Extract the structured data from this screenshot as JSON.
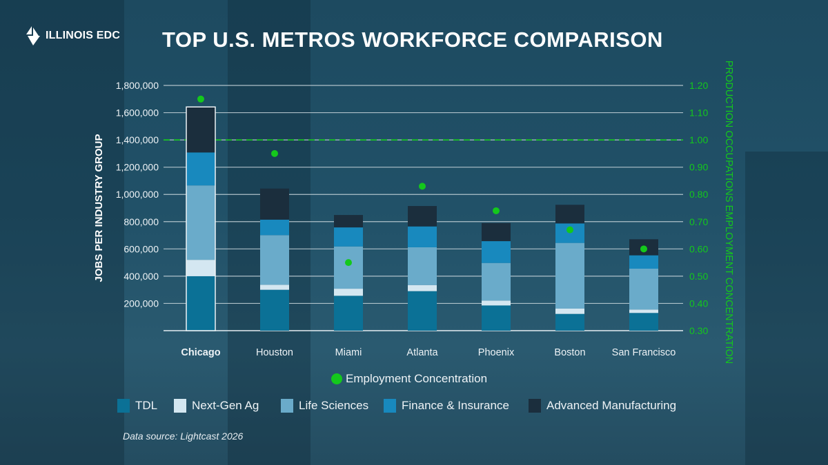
{
  "header": {
    "logo_text": "ILLINOIS EDC",
    "title": "TOP U.S. METROS WORKFORCE COMPARISON"
  },
  "footer": {
    "source": "Data source: Lightcast 2026"
  },
  "colors": {
    "TDL": "#0b7196",
    "Next-Gen Ag": "#d4e7f1",
    "Life Sciences": "#6aabca",
    "Finance & Insurance": "#1889be",
    "Advanced Manufacturing": "#1b2e3d",
    "concentration": "#14c81c"
  },
  "chart_data": {
    "type": "bar",
    "stacked": true,
    "title": "TOP U.S. METROS WORKFORCE COMPARISON",
    "categories": [
      "Chicago",
      "Houston",
      "Miami",
      "Atlanta",
      "Phoenix",
      "Boston",
      "San Francisco"
    ],
    "highlighted_category": "Chicago",
    "ylabel": "JOBS PER INDUSTRY GROUP",
    "ylim": [
      0,
      1800000
    ],
    "yticks": [
      "200,000",
      "400,000",
      "600,000",
      "800,000",
      "1,000,000",
      "1,200,000",
      "1,400,000",
      "1,600,000",
      "1,800,000"
    ],
    "y2label": "PRODUCTION OCCUPATIONS EMPLOYMENT CONCENTRATION",
    "y2lim": [
      0.3,
      1.2
    ],
    "y2ticks": [
      "0.30",
      "0.40",
      "0.50",
      "0.60",
      "0.70",
      "0.80",
      "0.90",
      "1.00",
      "1.10",
      "1.20"
    ],
    "reference_line": {
      "axis": "y2",
      "value": 1.0,
      "style": "dashed"
    },
    "grid": true,
    "series": [
      {
        "name": "TDL",
        "values": [
          400000,
          300000,
          256000,
          290000,
          185000,
          123000,
          130000
        ]
      },
      {
        "name": "Next-Gen Ag",
        "values": [
          120000,
          37000,
          52000,
          45000,
          36000,
          39000,
          25000
        ]
      },
      {
        "name": "Life Sciences",
        "values": [
          546000,
          364000,
          310000,
          277000,
          276000,
          482000,
          300000
        ]
      },
      {
        "name": "Finance & Insurance",
        "values": [
          242000,
          114000,
          140000,
          153000,
          160000,
          143000,
          98000
        ]
      },
      {
        "name": "Advanced Manufacturing",
        "values": [
          334000,
          228000,
          91000,
          150000,
          133000,
          137000,
          118000
        ]
      }
    ],
    "scatter_series": {
      "name": "Employment Concentration",
      "axis": "y2",
      "values": [
        1.15,
        0.95,
        0.55,
        0.83,
        0.74,
        0.67,
        0.6
      ]
    },
    "legend_placement": "bottom"
  }
}
